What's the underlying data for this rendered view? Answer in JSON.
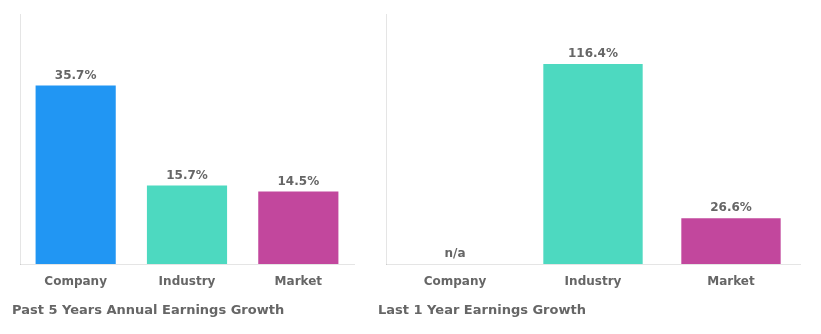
{
  "chart_data": [
    {
      "type": "bar",
      "title": "Past 5 Years Annual Earnings Growth",
      "categories": [
        "Company",
        "Industry",
        "Market"
      ],
      "values": [
        35.7,
        15.7,
        14.5
      ],
      "value_labels": [
        "35.7%",
        "15.7%",
        "14.5%"
      ],
      "colors": [
        "#2196f3",
        "#4dd9c0",
        "#c2479d"
      ],
      "ylim": [
        0,
        49.98
      ],
      "data_labels": true,
      "tick_labels": "x",
      "grid": false
    },
    {
      "type": "bar",
      "title": "Last 1 Year Earnings Growth",
      "categories": [
        "Company",
        "Industry",
        "Market"
      ],
      "values": [
        null,
        116.4,
        26.6
      ],
      "value_labels": [
        "n/a",
        "116.4%",
        "26.6%"
      ],
      "colors": [
        null,
        "#4dd9c0",
        "#c2479d"
      ],
      "ylim": [
        0,
        145.5
      ],
      "data_labels": true,
      "tick_labels": "x",
      "grid": false
    }
  ]
}
